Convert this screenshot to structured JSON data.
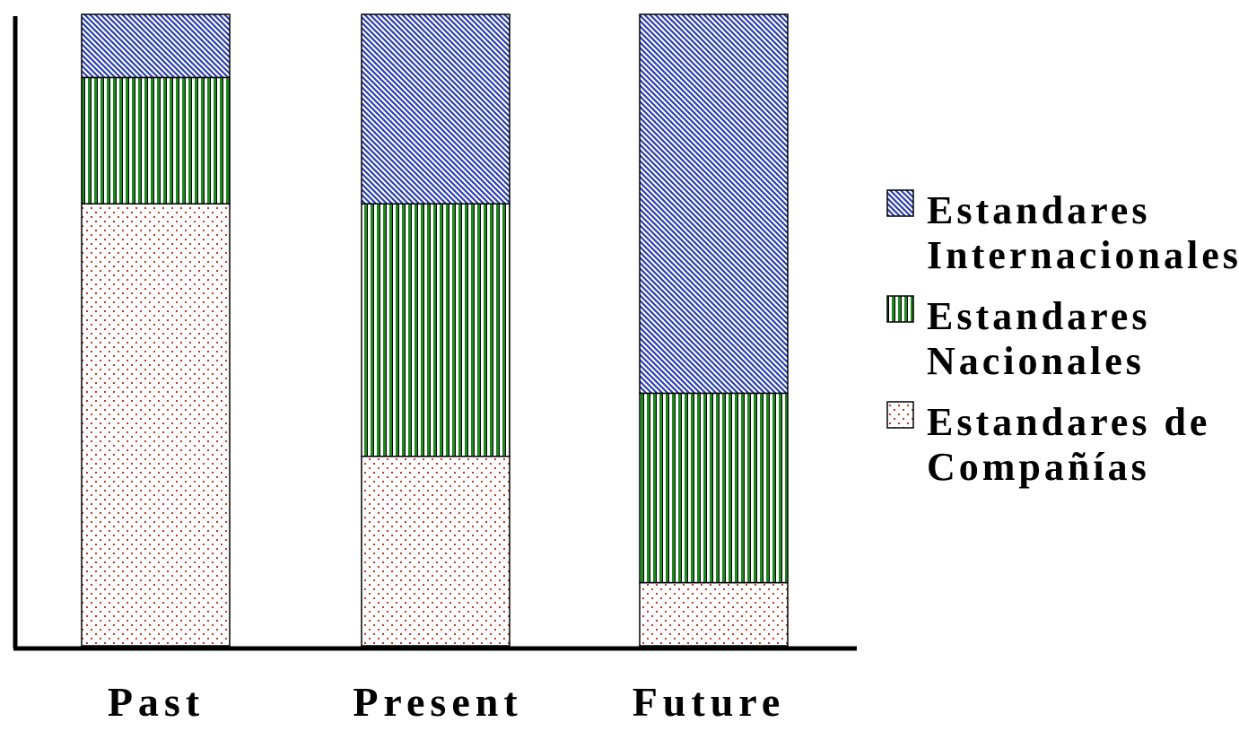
{
  "chart_data": {
    "type": "bar",
    "stacked": true,
    "percent": true,
    "categories": [
      "Past",
      "Present",
      "Future"
    ],
    "series": [
      {
        "name": "Estandares de Compañías",
        "pattern": "dots",
        "color": "#c0392b",
        "values": [
          70,
          30,
          10
        ]
      },
      {
        "name": "Estandares Nacionales",
        "pattern": "vertical-lines",
        "color": "#1e8a1e",
        "values": [
          20,
          40,
          30
        ]
      },
      {
        "name": "Estandares Internacionales",
        "pattern": "diagonal-lines",
        "color": "#2b3fb0",
        "values": [
          10,
          30,
          60
        ]
      }
    ],
    "ylim": [
      0,
      100
    ],
    "title": "",
    "xlabel": "",
    "ylabel": "",
    "grid": false,
    "legend_position": "right",
    "legend": [
      {
        "series": 2,
        "lines": [
          "Estandares",
          "Internacionales"
        ]
      },
      {
        "series": 1,
        "lines": [
          "Estandares",
          "Nacionales"
        ]
      },
      {
        "series": 0,
        "lines": [
          "Estandares de",
          "Compañías"
        ]
      }
    ]
  }
}
